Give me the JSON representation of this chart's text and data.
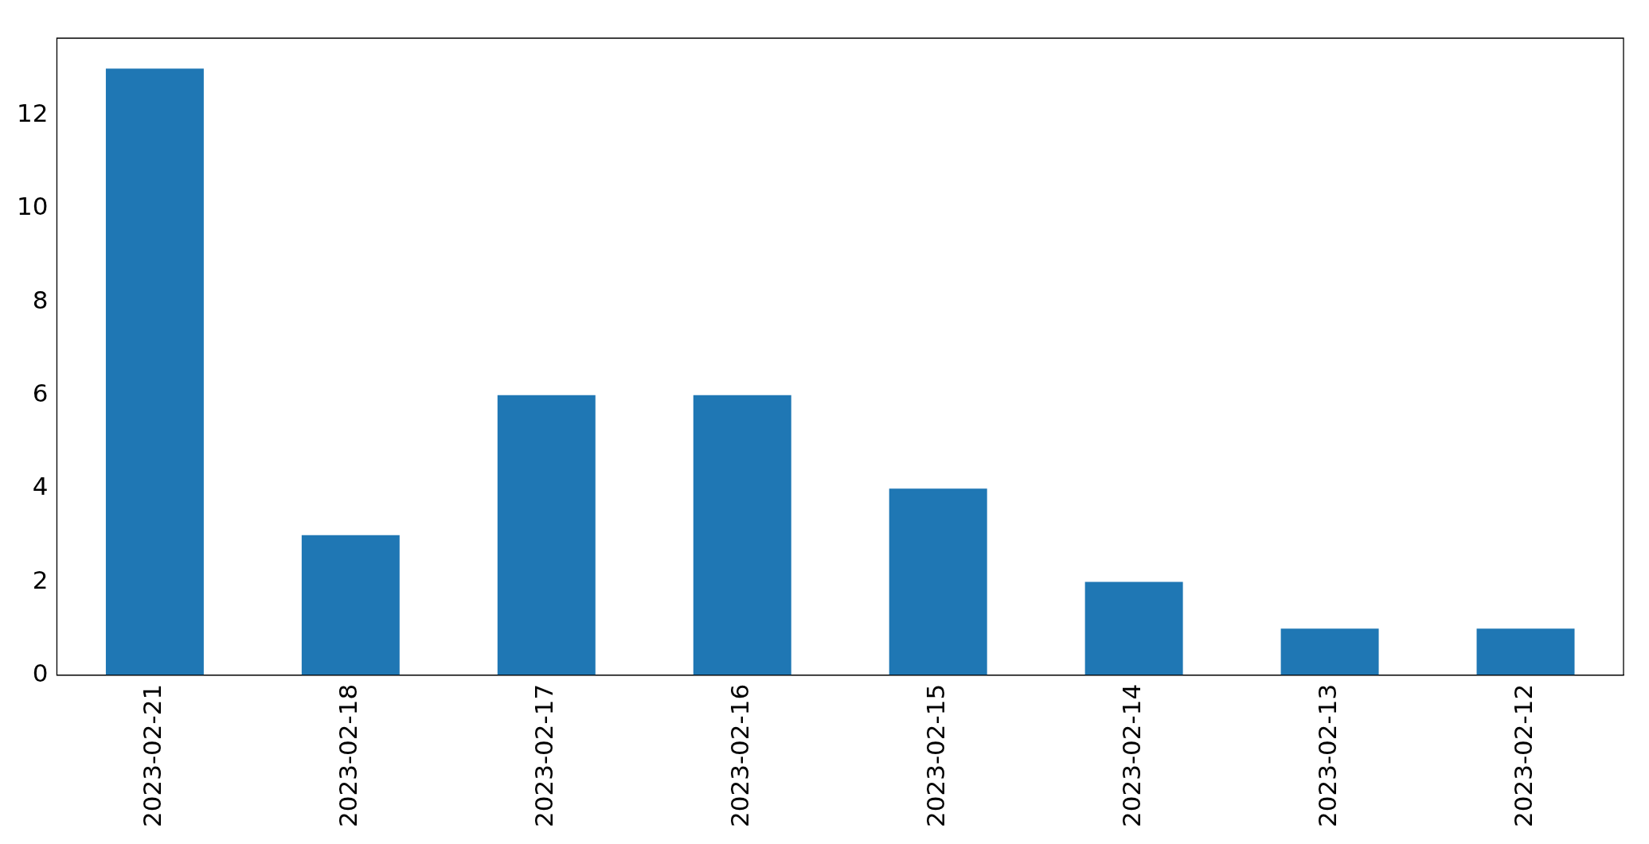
{
  "chart_data": {
    "type": "bar",
    "categories": [
      "2023-02-21",
      "2023-02-18",
      "2023-02-17",
      "2023-02-16",
      "2023-02-15",
      "2023-02-14",
      "2023-02-13",
      "2023-02-12"
    ],
    "values": [
      13,
      3,
      6,
      6,
      4,
      2,
      1,
      1
    ],
    "color": "#1f77b4",
    "ylim": [
      0,
      13.65
    ],
    "yticks": [
      0,
      2,
      4,
      6,
      8,
      10,
      12
    ],
    "grid": false
  }
}
